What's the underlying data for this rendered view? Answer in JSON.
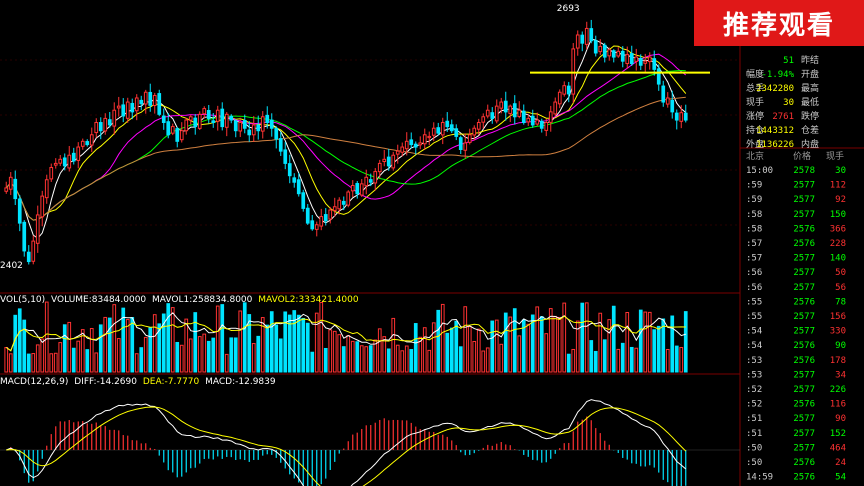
{
  "badge": {
    "label": "推荐观看"
  },
  "price_panel": {
    "price_marks": {
      "high": "2693",
      "low": "2402"
    },
    "support_line_level": 2636
  },
  "volume_panel": {
    "legend": {
      "prefix": "VOL(5,10)",
      "volume": "VOLUME:83484.0000",
      "mavol1": "MAVOL1:258834.8000",
      "mavol2": "MAVOL2:333421.4000"
    }
  },
  "macd_panel": {
    "legend": {
      "prefix": "MACD(12,26,9)",
      "diff": "DIFF:-14.2690",
      "dea": "DEA:-7.7770",
      "macd": "MACD:-12.9839"
    }
  },
  "quote_panel": {
    "rows": [
      {
        "label": "幅度",
        "value": "-1.94%",
        "label2": "开盘"
      },
      {
        "label": "总手",
        "value": "2342280",
        "label2": "最高"
      },
      {
        "label": "现手",
        "value": "30",
        "label2": "最低"
      },
      {
        "label": "涨停",
        "value": "2761",
        "label2": "跌停"
      },
      {
        "label": "持仓",
        "value": "1443312",
        "label2": "仓差"
      },
      {
        "label": "外盘",
        "value": "1136226",
        "label2": "内盘"
      }
    ],
    "partial_top": {
      "value": "51",
      "label2": "昨结"
    },
    "tick_header": {
      "c1": "北京",
      "c2": "价格",
      "c3": "现手"
    },
    "ticks": [
      {
        "t": "15:00",
        "p": "2578",
        "v": "30"
      },
      {
        "t": ":59",
        "p": "2577",
        "v": "112"
      },
      {
        "t": ":59",
        "p": "2577",
        "v": "92"
      },
      {
        "t": ":58",
        "p": "2577",
        "v": "150"
      },
      {
        "t": ":58",
        "p": "2576",
        "v": "366"
      },
      {
        "t": ":57",
        "p": "2576",
        "v": "228"
      },
      {
        "t": ":57",
        "p": "2577",
        "v": "140"
      },
      {
        "t": ":56",
        "p": "2577",
        "v": "50"
      },
      {
        "t": ":56",
        "p": "2577",
        "v": "56"
      },
      {
        "t": ":55",
        "p": "2576",
        "v": "78"
      },
      {
        "t": ":55",
        "p": "2577",
        "v": "156"
      },
      {
        "t": ":54",
        "p": "2577",
        "v": "330"
      },
      {
        "t": ":54",
        "p": "2576",
        "v": "90"
      },
      {
        "t": ":53",
        "p": "2576",
        "v": "178"
      },
      {
        "t": ":53",
        "p": "2577",
        "v": "34"
      },
      {
        "t": ":52",
        "p": "2577",
        "v": "226"
      },
      {
        "t": ":52",
        "p": "2576",
        "v": "116"
      },
      {
        "t": ":51",
        "p": "2577",
        "v": "90"
      },
      {
        "t": ":51",
        "p": "2577",
        "v": "152"
      },
      {
        "t": ":50",
        "p": "2577",
        "v": "464"
      },
      {
        "t": ":50",
        "p": "2576",
        "v": "24"
      },
      {
        "t": "14:59",
        "p": "2576",
        "v": "54"
      }
    ]
  },
  "colors": {
    "up": "#ff3232",
    "down": "#00e4ff",
    "ma5": "#ffffff",
    "ma10": "#ffff00",
    "ma20": "#ff00ff",
    "ma30": "#00ff00",
    "ma60": "#d08040",
    "support": "#ffff00",
    "green": "#00ff00",
    "red": "#ff3232",
    "grid": "#7a0000"
  },
  "chart_data": {
    "type": "candlestick",
    "y_range": [
      2380,
      2715
    ],
    "closes": [
      2495,
      2508,
      2482,
      2452,
      2418,
      2405,
      2430,
      2462,
      2485,
      2505,
      2520,
      2525,
      2530,
      2522,
      2535,
      2528,
      2545,
      2552,
      2548,
      2560,
      2575,
      2565,
      2580,
      2572,
      2590,
      2595,
      2583,
      2600,
      2588,
      2605,
      2598,
      2612,
      2596,
      2608,
      2585,
      2575,
      2560,
      2570,
      2552,
      2565,
      2578,
      2582,
      2570,
      2585,
      2592,
      2580,
      2575,
      2590,
      2570,
      2585,
      2578,
      2565,
      2575,
      2568,
      2560,
      2572,
      2565,
      2582,
      2575,
      2568,
      2555,
      2540,
      2525,
      2510,
      2502,
      2488,
      2470,
      2452,
      2445,
      2450,
      2460,
      2455,
      2468,
      2472,
      2480,
      2475,
      2490,
      2498,
      2488,
      2500,
      2508,
      2502,
      2515,
      2525,
      2530,
      2522,
      2535,
      2540,
      2545,
      2552,
      2548,
      2545,
      2550,
      2560,
      2558,
      2568,
      2562,
      2575,
      2570,
      2565,
      2558,
      2542,
      2550,
      2560,
      2568,
      2575,
      2582,
      2590,
      2580,
      2595,
      2600,
      2588,
      2595,
      2582,
      2590,
      2575,
      2580,
      2572,
      2578,
      2568,
      2575,
      2588,
      2600,
      2612,
      2620,
      2610,
      2665,
      2682,
      2672,
      2690,
      2675,
      2660,
      2668,
      2655,
      2664,
      2655,
      2662,
      2650,
      2658,
      2647,
      2655,
      2645,
      2650,
      2655,
      2640,
      2622,
      2600,
      2605,
      2588,
      2578,
      2587,
      2578
    ]
  }
}
